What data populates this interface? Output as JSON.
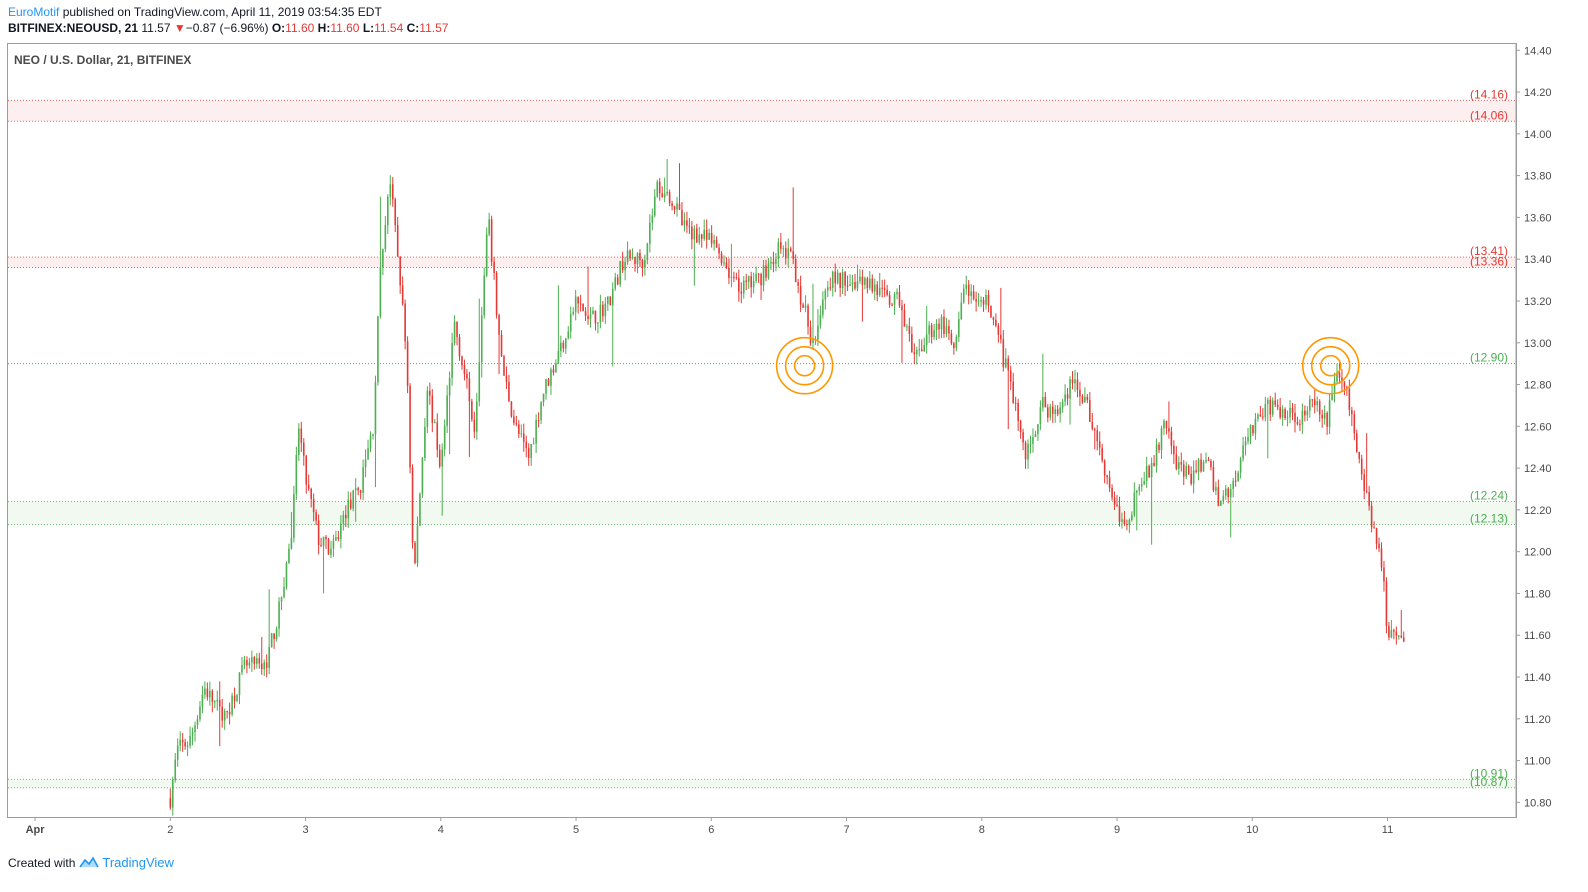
{
  "header": {
    "author": "EuroMotif",
    "published_text": " published on TradingView.com, April 11, 2019 03:54:35 EDT",
    "symbol": "BITFINEX:NEOUSD, 21",
    "last": "11.57",
    "change_arrow": "▼",
    "change": "−0.87 (−6.96%)",
    "o_label": "O:",
    "o_value": "11.60",
    "h_label": "H:",
    "h_value": "11.60",
    "l_label": "L:",
    "l_value": "11.54",
    "c_label": "C:",
    "c_value": "11.57"
  },
  "footer": {
    "created_with": "Created with",
    "brand": "TradingView"
  },
  "colors": {
    "up": "#4caf50",
    "down": "#e53935",
    "resistance": "#e53935",
    "support": "#4caf50",
    "circle": "#ff9800"
  },
  "chart_data": {
    "type": "candlestick",
    "title": "NEO / U.S. Dollar, 21, BITFINEX",
    "y_ticks": [
      "10.80",
      "11.00",
      "11.20",
      "11.40",
      "11.60",
      "11.80",
      "12.00",
      "12.20",
      "12.40",
      "12.60",
      "12.80",
      "13.00",
      "13.20",
      "13.40",
      "13.60",
      "13.80",
      "14.00",
      "14.20",
      "14.40"
    ],
    "ylim": [
      10.73,
      14.43
    ],
    "x_ticks": [
      {
        "label": "Apr",
        "day": 1
      },
      {
        "label": "2",
        "day": 2
      },
      {
        "label": "3",
        "day": 3
      },
      {
        "label": "4",
        "day": 4
      },
      {
        "label": "5",
        "day": 5
      },
      {
        "label": "6",
        "day": 6
      },
      {
        "label": "7",
        "day": 7
      },
      {
        "label": "8",
        "day": 8
      },
      {
        "label": "9",
        "day": 9
      },
      {
        "label": "10",
        "day": 10
      },
      {
        "label": "11",
        "day": 11
      }
    ],
    "xlim": [
      0.8,
      11.95
    ],
    "zones": [
      {
        "kind": "resistance",
        "top": 14.16,
        "bottom": 14.06,
        "top_label": "(14.16)",
        "bottom_label": "(14.06)"
      },
      {
        "kind": "resistance",
        "top": 13.41,
        "bottom": 13.36,
        "top_label": "(13.41)",
        "bottom_label": "(13.36)"
      },
      {
        "kind": "support",
        "top": 12.24,
        "bottom": 12.13,
        "top_label": "(12.24)",
        "bottom_label": "(12.13)"
      },
      {
        "kind": "support",
        "top": 10.91,
        "bottom": 10.87,
        "top_label": "(10.91)",
        "bottom_label": "(10.87)"
      }
    ],
    "lines": [
      {
        "kind": "support",
        "value": 12.9,
        "label": "(12.90)"
      }
    ],
    "markers": [
      {
        "day": 6.69,
        "price": 12.89
      },
      {
        "day": 10.58,
        "price": 12.89
      }
    ],
    "path": [
      [
        2.0,
        10.82
      ],
      [
        2.05,
        11.05
      ],
      [
        2.15,
        11.1
      ],
      [
        2.25,
        11.35
      ],
      [
        2.4,
        11.2
      ],
      [
        2.55,
        11.45
      ],
      [
        2.7,
        11.45
      ],
      [
        2.8,
        11.7
      ],
      [
        2.9,
        12.1
      ],
      [
        2.95,
        12.6
      ],
      [
        3.0,
        12.35
      ],
      [
        3.1,
        12.05
      ],
      [
        3.2,
        12.0
      ],
      [
        3.3,
        12.2
      ],
      [
        3.4,
        12.3
      ],
      [
        3.5,
        12.6
      ],
      [
        3.55,
        13.3
      ],
      [
        3.62,
        13.8
      ],
      [
        3.7,
        13.3
      ],
      [
        3.75,
        12.9
      ],
      [
        3.8,
        11.85
      ],
      [
        3.9,
        12.8
      ],
      [
        4.0,
        12.4
      ],
      [
        4.1,
        13.1
      ],
      [
        4.25,
        12.6
      ],
      [
        4.35,
        13.6
      ],
      [
        4.45,
        12.9
      ],
      [
        4.55,
        12.6
      ],
      [
        4.65,
        12.45
      ],
      [
        4.75,
        12.75
      ],
      [
        4.9,
        13.0
      ],
      [
        5.0,
        13.2
      ],
      [
        5.1,
        13.1
      ],
      [
        5.25,
        13.2
      ],
      [
        5.35,
        13.4
      ],
      [
        5.5,
        13.4
      ],
      [
        5.6,
        13.75
      ],
      [
        5.7,
        13.7
      ],
      [
        5.8,
        13.55
      ],
      [
        5.95,
        13.5
      ],
      [
        6.05,
        13.45
      ],
      [
        6.2,
        13.25
      ],
      [
        6.35,
        13.3
      ],
      [
        6.5,
        13.45
      ],
      [
        6.6,
        13.4
      ],
      [
        6.67,
        13.2
      ],
      [
        6.75,
        13.0
      ],
      [
        6.85,
        13.3
      ],
      [
        6.95,
        13.3
      ],
      [
        7.05,
        13.3
      ],
      [
        7.15,
        13.3
      ],
      [
        7.3,
        13.2
      ],
      [
        7.4,
        13.2
      ],
      [
        7.5,
        12.9
      ],
      [
        7.6,
        13.05
      ],
      [
        7.7,
        13.1
      ],
      [
        7.8,
        12.95
      ],
      [
        7.88,
        13.3
      ],
      [
        7.95,
        13.15
      ],
      [
        8.05,
        13.2
      ],
      [
        8.15,
        12.95
      ],
      [
        8.25,
        12.7
      ],
      [
        8.32,
        12.45
      ],
      [
        8.45,
        12.7
      ],
      [
        8.55,
        12.65
      ],
      [
        8.65,
        12.8
      ],
      [
        8.75,
        12.75
      ],
      [
        8.85,
        12.55
      ],
      [
        8.95,
        12.3
      ],
      [
        9.05,
        12.1
      ],
      [
        9.15,
        12.3
      ],
      [
        9.25,
        12.4
      ],
      [
        9.35,
        12.6
      ],
      [
        9.45,
        12.4
      ],
      [
        9.55,
        12.35
      ],
      [
        9.65,
        12.45
      ],
      [
        9.75,
        12.25
      ],
      [
        9.85,
        12.3
      ],
      [
        9.95,
        12.55
      ],
      [
        10.05,
        12.65
      ],
      [
        10.15,
        12.7
      ],
      [
        10.25,
        12.65
      ],
      [
        10.35,
        12.65
      ],
      [
        10.45,
        12.7
      ],
      [
        10.55,
        12.62
      ],
      [
        10.62,
        12.88
      ],
      [
        10.7,
        12.75
      ],
      [
        10.8,
        12.4
      ],
      [
        10.9,
        12.1
      ],
      [
        10.97,
        11.9
      ],
      [
        11.0,
        11.6
      ],
      [
        11.05,
        11.65
      ],
      [
        11.12,
        11.58
      ]
    ],
    "candle_count": 500,
    "last_price": 11.57
  }
}
